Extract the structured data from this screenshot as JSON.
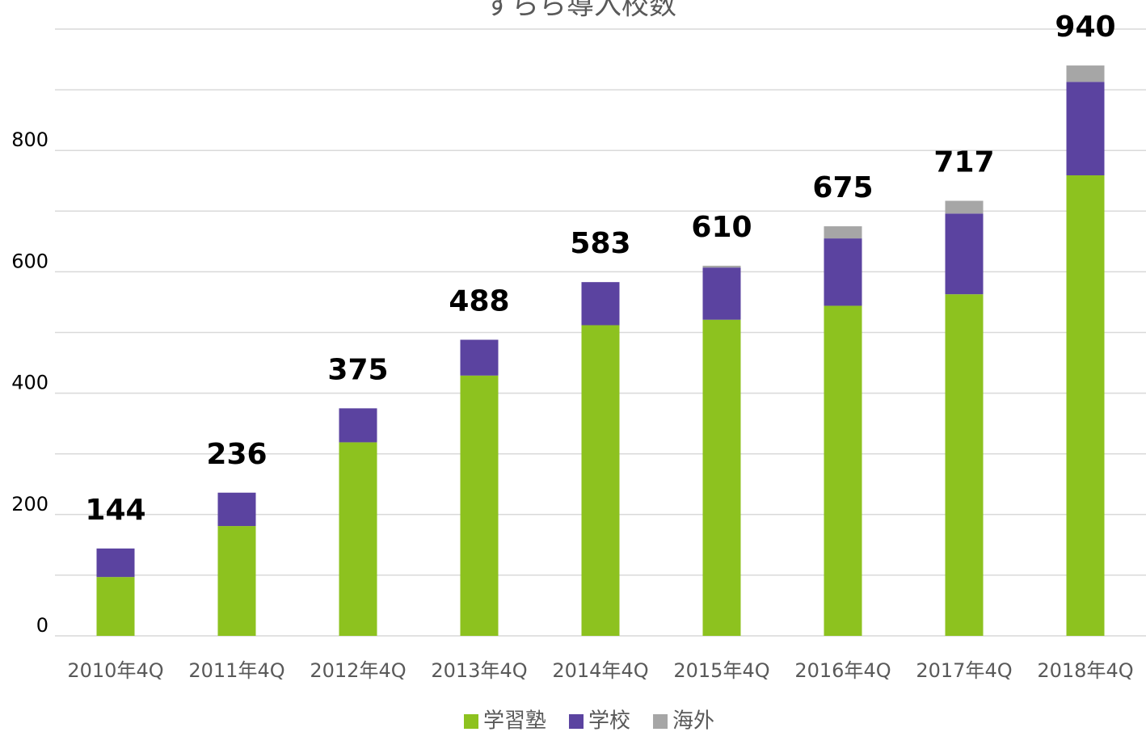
{
  "chart_data": {
    "type": "stacked_bar",
    "title": "すらら導入校数",
    "categories": [
      "2010年4Q",
      "2011年4Q",
      "2012年4Q",
      "2013年4Q",
      "2014年4Q",
      "2015年4Q",
      "2016年4Q",
      "2017年4Q",
      "2018年4Q"
    ],
    "series": [
      {
        "name": "学習塾",
        "color": "#8dc21f",
        "values": [
          97,
          181,
          319,
          429,
          512,
          521,
          544,
          563,
          759
        ]
      },
      {
        "name": "学校",
        "color": "#5b43a0",
        "values": [
          47,
          55,
          56,
          59,
          71,
          86,
          111,
          133,
          154
        ]
      },
      {
        "name": "海外",
        "color": "#a6a6a6",
        "values": [
          0,
          0,
          0,
          0,
          0,
          3,
          20,
          21,
          27
        ]
      }
    ],
    "totals": [
      144,
      236,
      375,
      488,
      583,
      610,
      675,
      717,
      940
    ],
    "ylim": [
      0,
      1000
    ],
    "yticks": [
      0,
      200,
      400,
      600,
      800
    ],
    "minor_yticks": [
      100,
      300,
      500,
      700,
      900,
      1000
    ],
    "grid": true,
    "legend": "bottom"
  }
}
